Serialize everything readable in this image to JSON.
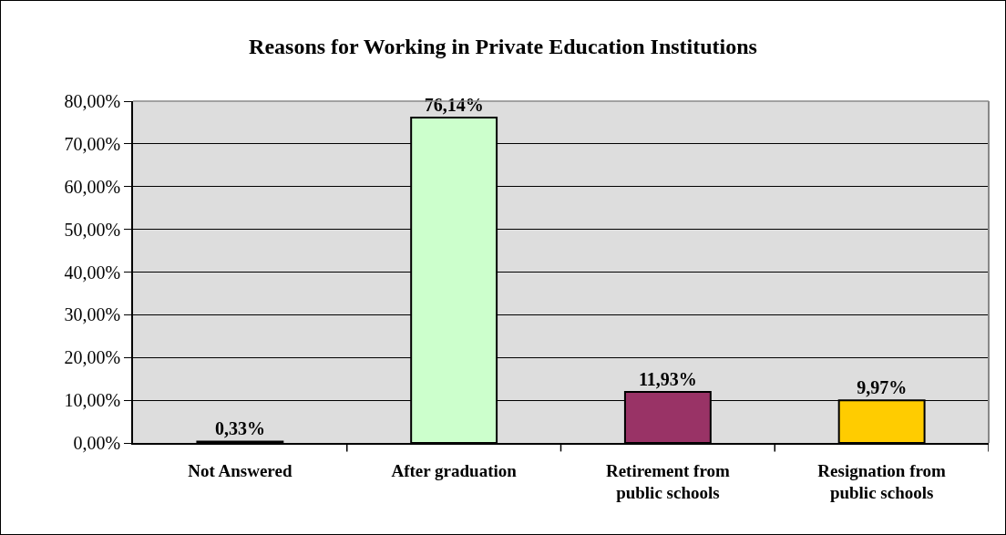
{
  "chart_data": {
    "type": "bar",
    "title": "Reasons for Working in Private Education Institutions",
    "categories": [
      "Not Answered",
      "After graduation",
      "Retirement from public schools",
      "Resignation from public schools"
    ],
    "values": [
      0.33,
      76.14,
      11.93,
      9.97
    ],
    "colors": [
      "#000000",
      "#ccffcc",
      "#993366",
      "#ffcc00"
    ],
    "value_labels": [
      "0,33%",
      "76,14%",
      "11,93%",
      "9,97%"
    ],
    "ylim": [
      0,
      80
    ],
    "yticks": [
      {
        "value": 0,
        "label": "0,00%"
      },
      {
        "value": 10,
        "label": "10,00%"
      },
      {
        "value": 20,
        "label": "20,00%"
      },
      {
        "value": 30,
        "label": "30,00%"
      },
      {
        "value": 40,
        "label": "40,00%"
      },
      {
        "value": 50,
        "label": "50,00%"
      },
      {
        "value": 60,
        "label": "60,00%"
      },
      {
        "value": 70,
        "label": "70,00%"
      },
      {
        "value": 80,
        "label": "80,00%"
      }
    ],
    "grid": "y"
  }
}
